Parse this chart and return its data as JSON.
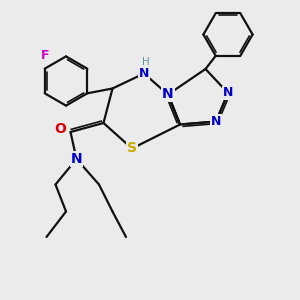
{
  "background_color": "#ebebeb",
  "atom_colors": {
    "N": "#0000cc",
    "O": "#dd0000",
    "S": "#ccaa00",
    "F": "#cc00cc",
    "H": "#559999"
  },
  "bond_color": "#111111",
  "figsize": [
    3.0,
    3.0
  ],
  "dpi": 100
}
